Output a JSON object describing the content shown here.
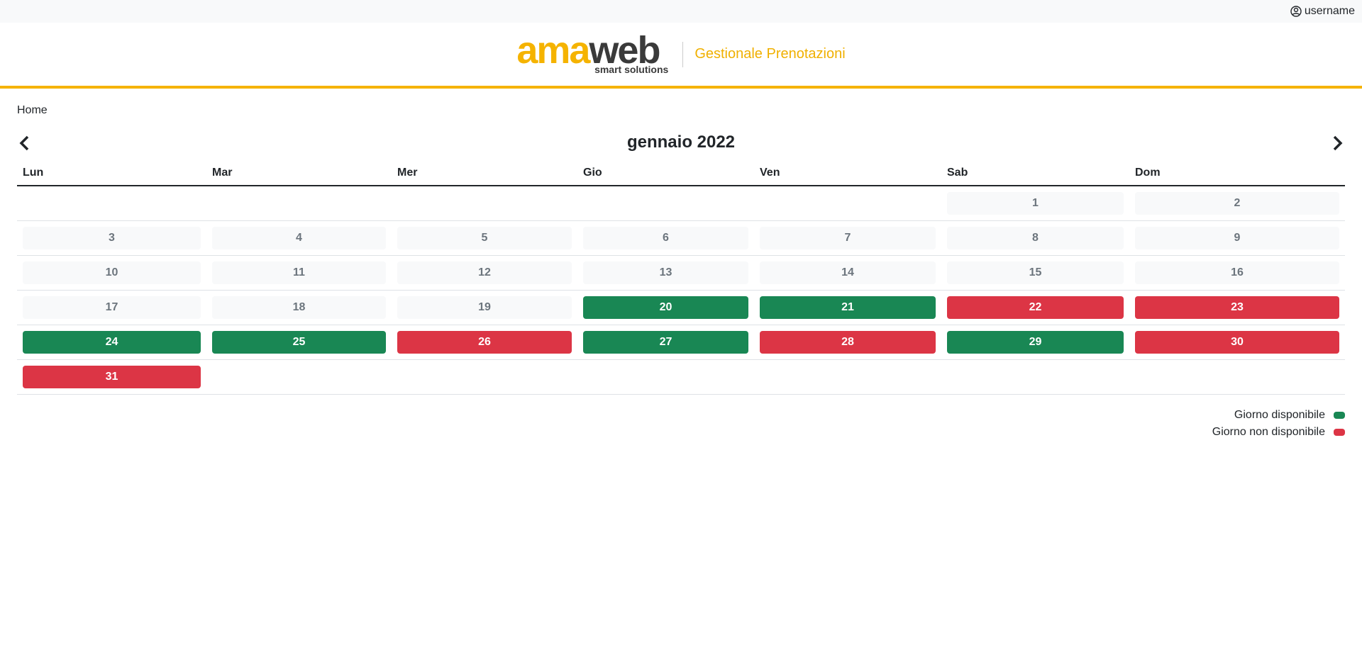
{
  "header": {
    "username": "username",
    "logo_a": "ama",
    "logo_b": "web",
    "logo_tagline": "smart solutions",
    "app_title": "Gestionale Prenotazioni"
  },
  "breadcrumb": "Home",
  "calendar": {
    "title": "gennaio 2022",
    "weekdays": [
      "Lun",
      "Mar",
      "Mer",
      "Gio",
      "Ven",
      "Sab",
      "Dom"
    ],
    "weeks": [
      [
        null,
        null,
        null,
        null,
        null,
        {
          "day": "1",
          "status": "past"
        },
        {
          "day": "2",
          "status": "past"
        }
      ],
      [
        {
          "day": "3",
          "status": "past"
        },
        {
          "day": "4",
          "status": "past"
        },
        {
          "day": "5",
          "status": "past"
        },
        {
          "day": "6",
          "status": "past"
        },
        {
          "day": "7",
          "status": "past"
        },
        {
          "day": "8",
          "status": "past"
        },
        {
          "day": "9",
          "status": "past"
        }
      ],
      [
        {
          "day": "10",
          "status": "past"
        },
        {
          "day": "11",
          "status": "past"
        },
        {
          "day": "12",
          "status": "past"
        },
        {
          "day": "13",
          "status": "past"
        },
        {
          "day": "14",
          "status": "past"
        },
        {
          "day": "15",
          "status": "past"
        },
        {
          "day": "16",
          "status": "past"
        }
      ],
      [
        {
          "day": "17",
          "status": "past"
        },
        {
          "day": "18",
          "status": "past"
        },
        {
          "day": "19",
          "status": "past"
        },
        {
          "day": "20",
          "status": "available"
        },
        {
          "day": "21",
          "status": "available"
        },
        {
          "day": "22",
          "status": "unavailable"
        },
        {
          "day": "23",
          "status": "unavailable"
        }
      ],
      [
        {
          "day": "24",
          "status": "available"
        },
        {
          "day": "25",
          "status": "available"
        },
        {
          "day": "26",
          "status": "unavailable"
        },
        {
          "day": "27",
          "status": "available"
        },
        {
          "day": "28",
          "status": "unavailable"
        },
        {
          "day": "29",
          "status": "available"
        },
        {
          "day": "30",
          "status": "unavailable"
        }
      ],
      [
        {
          "day": "31",
          "status": "unavailable"
        },
        null,
        null,
        null,
        null,
        null,
        null
      ]
    ]
  },
  "legend": [
    {
      "label": "Giorno disponibile",
      "color": "#198754"
    },
    {
      "label": "Giorno non disponibile",
      "color": "#dc3545"
    }
  ]
}
